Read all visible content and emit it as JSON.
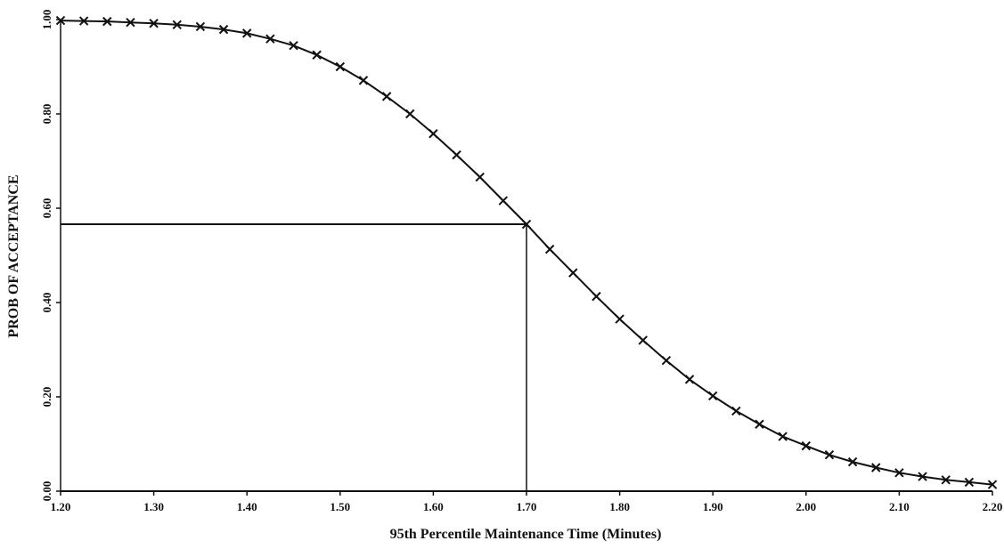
{
  "chart_data": {
    "type": "line",
    "title": "",
    "xlabel": "95th Percentile Maintenance Time (Minutes)",
    "ylabel": "PROB OF ACCEPTANCE",
    "xlim": [
      1.2,
      2.2
    ],
    "ylim": [
      0.0,
      1.0
    ],
    "grid": false,
    "marker": "x",
    "x_ticks": [
      "1.20",
      "1.30",
      "1.40",
      "1.50",
      "1.60",
      "1.70",
      "1.80",
      "1.90",
      "2.00",
      "2.10",
      "2.20"
    ],
    "y_ticks": [
      "0.00",
      "0.20",
      "0.40",
      "0.60",
      "0.80",
      "1.00"
    ],
    "series": [
      {
        "x": [
          1.2,
          1.225,
          1.25,
          1.275,
          1.3,
          1.325,
          1.35,
          1.375,
          1.4,
          1.425,
          1.45,
          1.475,
          1.5,
          1.525,
          1.55,
          1.575,
          1.6,
          1.625,
          1.65,
          1.675,
          1.7,
          1.725,
          1.75,
          1.775,
          1.8,
          1.825,
          1.85,
          1.875,
          1.9,
          1.925,
          1.95,
          1.975,
          2.0,
          2.025,
          2.05,
          2.075,
          2.1,
          2.125,
          2.15,
          2.175,
          2.2
        ],
        "y": [
          0.998,
          0.997,
          0.996,
          0.994,
          0.992,
          0.989,
          0.985,
          0.979,
          0.971,
          0.959,
          0.945,
          0.925,
          0.9,
          0.871,
          0.837,
          0.8,
          0.758,
          0.713,
          0.666,
          0.616,
          0.566,
          0.513,
          0.463,
          0.413,
          0.365,
          0.32,
          0.277,
          0.237,
          0.202,
          0.17,
          0.142,
          0.116,
          0.096,
          0.077,
          0.062,
          0.05,
          0.039,
          0.031,
          0.024,
          0.019,
          0.014
        ]
      }
    ],
    "reference_point": {
      "x": 1.7,
      "y": 0.566
    }
  }
}
